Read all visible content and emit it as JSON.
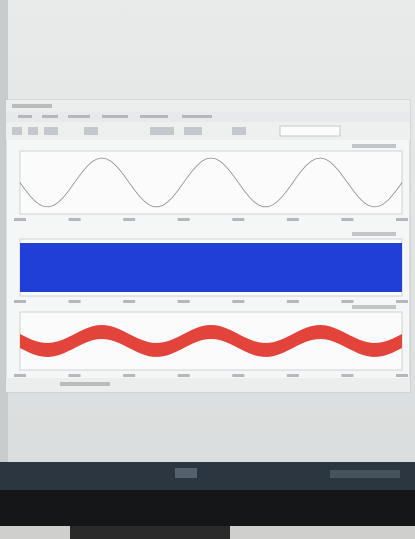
{
  "plots": [
    {
      "color": "#8d8d8d"
    },
    {
      "color": "#1f3fd6"
    },
    {
      "color": "#e2443c"
    }
  ]
}
